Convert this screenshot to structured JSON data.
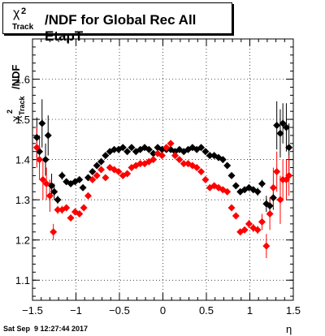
{
  "chart_data": {
    "type": "scatter",
    "title_symbol": "χ",
    "title_sup": "2",
    "title_sub": "Track",
    "title_rest": "/NDF for Global Rec All EtapT",
    "xlabel": "η",
    "ylabel_symbol": "χ",
    "ylabel_sup": "2",
    "ylabel_sub": "Track",
    "ylabel_rest": "/NDF",
    "xlim": [
      -1.5,
      1.5
    ],
    "ylim": [
      1.05,
      1.7
    ],
    "xticks": [
      -1.5,
      -1,
      -0.5,
      0,
      0.5,
      1,
      1.5
    ],
    "xtick_labels": [
      "−1.5",
      "−1",
      "−0.5",
      "0",
      "0.5",
      "1",
      "1.5"
    ],
    "yticks": [
      1.1,
      1.2,
      1.3,
      1.4,
      1.5,
      1.6
    ],
    "ytick_labels": [
      "1.1",
      "1.2",
      "1.3",
      "1.4",
      "1.5",
      "1.6"
    ],
    "grid": true,
    "series": [
      {
        "color": "#000000",
        "points": [
          [
            -1.45,
            1.455,
            0.05
          ],
          [
            -1.42,
            1.42,
            0.04
          ],
          [
            -1.39,
            1.49,
            0.06
          ],
          [
            -1.35,
            1.4,
            0.04
          ],
          [
            -1.32,
            1.46,
            0.05
          ],
          [
            -1.28,
            1.335,
            0.03
          ],
          [
            -1.25,
            1.32,
            0.02
          ],
          [
            -1.21,
            1.3,
            0.01
          ],
          [
            -1.16,
            1.36,
            0.01
          ],
          [
            -1.11,
            1.345,
            0.006
          ],
          [
            -1.06,
            1.34,
            0.005
          ],
          [
            -1.01,
            1.345,
            0.005
          ],
          [
            -0.96,
            1.35,
            0.005
          ],
          [
            -0.92,
            1.33,
            0.005
          ],
          [
            -0.86,
            1.355,
            0.005
          ],
          [
            -0.81,
            1.37,
            0.005
          ],
          [
            -0.76,
            1.385,
            0.005
          ],
          [
            -0.71,
            1.395,
            0.005
          ],
          [
            -0.66,
            1.41,
            0.005
          ],
          [
            -0.61,
            1.42,
            0.005
          ],
          [
            -0.56,
            1.425,
            0.005
          ],
          [
            -0.51,
            1.425,
            0.005
          ],
          [
            -0.46,
            1.43,
            0.005
          ],
          [
            -0.41,
            1.42,
            0.005
          ],
          [
            -0.36,
            1.43,
            0.005
          ],
          [
            -0.31,
            1.42,
            0.005
          ],
          [
            -0.26,
            1.425,
            0.005
          ],
          [
            -0.21,
            1.43,
            0.005
          ],
          [
            -0.16,
            1.425,
            0.005
          ],
          [
            -0.11,
            1.415,
            0.005
          ],
          [
            -0.06,
            1.43,
            0.005
          ],
          [
            -0.01,
            1.425,
            0.005
          ],
          [
            0.04,
            1.425,
            0.005
          ],
          [
            0.09,
            1.425,
            0.005
          ],
          [
            0.14,
            1.42,
            0.005
          ],
          [
            0.19,
            1.425,
            0.005
          ],
          [
            0.24,
            1.42,
            0.005
          ],
          [
            0.29,
            1.425,
            0.005
          ],
          [
            0.34,
            1.43,
            0.005
          ],
          [
            0.39,
            1.425,
            0.005
          ],
          [
            0.44,
            1.43,
            0.005
          ],
          [
            0.49,
            1.42,
            0.005
          ],
          [
            0.54,
            1.41,
            0.005
          ],
          [
            0.59,
            1.41,
            0.005
          ],
          [
            0.64,
            1.405,
            0.005
          ],
          [
            0.69,
            1.4,
            0.005
          ],
          [
            0.74,
            1.385,
            0.005
          ],
          [
            0.79,
            1.36,
            0.005
          ],
          [
            0.84,
            1.335,
            0.005
          ],
          [
            0.89,
            1.32,
            0.005
          ],
          [
            0.94,
            1.325,
            0.005
          ],
          [
            0.99,
            1.33,
            0.005
          ],
          [
            1.04,
            1.325,
            0.005
          ],
          [
            1.09,
            1.32,
            0.01
          ],
          [
            1.14,
            1.34,
            0.01
          ],
          [
            1.19,
            1.29,
            0.02
          ],
          [
            1.23,
            1.285,
            0.02
          ],
          [
            1.27,
            1.305,
            0.03
          ],
          [
            1.31,
            1.485,
            0.06
          ],
          [
            1.35,
            1.465,
            0.06
          ],
          [
            1.38,
            1.49,
            0.05
          ],
          [
            1.42,
            1.48,
            0.06
          ],
          [
            1.45,
            1.43,
            0.06
          ]
        ]
      },
      {
        "color": "#ff0000",
        "points": [
          [
            -1.45,
            1.43,
            0.05
          ],
          [
            -1.42,
            1.4,
            0.05
          ],
          [
            -1.38,
            1.35,
            0.05
          ],
          [
            -1.34,
            1.34,
            0.04
          ],
          [
            -1.3,
            1.31,
            0.04
          ],
          [
            -1.26,
            1.22,
            0.02
          ],
          [
            -1.21,
            1.275,
            0.01
          ],
          [
            -1.16,
            1.275,
            0.01
          ],
          [
            -1.11,
            1.28,
            0.008
          ],
          [
            -1.06,
            1.255,
            0.006
          ],
          [
            -1.01,
            1.27,
            0.006
          ],
          [
            -0.96,
            1.265,
            0.005
          ],
          [
            -0.91,
            1.28,
            0.005
          ],
          [
            -0.86,
            1.31,
            0.005
          ],
          [
            -0.81,
            1.35,
            0.005
          ],
          [
            -0.76,
            1.36,
            0.005
          ],
          [
            -0.71,
            1.375,
            0.005
          ],
          [
            -0.66,
            1.355,
            0.005
          ],
          [
            -0.61,
            1.38,
            0.005
          ],
          [
            -0.56,
            1.375,
            0.005
          ],
          [
            -0.51,
            1.37,
            0.005
          ],
          [
            -0.46,
            1.36,
            0.005
          ],
          [
            -0.41,
            1.365,
            0.005
          ],
          [
            -0.36,
            1.38,
            0.005
          ],
          [
            -0.31,
            1.385,
            0.005
          ],
          [
            -0.26,
            1.39,
            0.005
          ],
          [
            -0.21,
            1.39,
            0.005
          ],
          [
            -0.16,
            1.395,
            0.005
          ],
          [
            -0.11,
            1.4,
            0.005
          ],
          [
            -0.06,
            1.415,
            0.005
          ],
          [
            -0.01,
            1.41,
            0.005
          ],
          [
            0.04,
            1.43,
            0.005
          ],
          [
            0.09,
            1.44,
            0.005
          ],
          [
            0.14,
            1.41,
            0.005
          ],
          [
            0.19,
            1.4,
            0.005
          ],
          [
            0.24,
            1.39,
            0.005
          ],
          [
            0.29,
            1.39,
            0.005
          ],
          [
            0.34,
            1.385,
            0.005
          ],
          [
            0.39,
            1.38,
            0.005
          ],
          [
            0.44,
            1.37,
            0.005
          ],
          [
            0.49,
            1.35,
            0.005
          ],
          [
            0.54,
            1.33,
            0.005
          ],
          [
            0.59,
            1.335,
            0.005
          ],
          [
            0.64,
            1.33,
            0.005
          ],
          [
            0.69,
            1.325,
            0.005
          ],
          [
            0.74,
            1.32,
            0.005
          ],
          [
            0.79,
            1.28,
            0.005
          ],
          [
            0.84,
            1.26,
            0.006
          ],
          [
            0.89,
            1.22,
            0.006
          ],
          [
            0.94,
            1.225,
            0.008
          ],
          [
            0.99,
            1.24,
            0.01
          ],
          [
            1.04,
            1.23,
            0.01
          ],
          [
            1.09,
            1.225,
            0.01
          ],
          [
            1.14,
            1.245,
            0.02
          ],
          [
            1.19,
            1.185,
            0.03
          ],
          [
            1.23,
            1.265,
            0.04
          ],
          [
            1.27,
            1.33,
            0.05
          ],
          [
            1.31,
            1.37,
            0.05
          ],
          [
            1.35,
            1.3,
            0.06
          ],
          [
            1.38,
            1.35,
            0.05
          ],
          [
            1.42,
            1.35,
            0.05
          ],
          [
            1.45,
            1.36,
            0.05
          ]
        ]
      }
    ]
  },
  "timestamp": "Sat Sep  9 12:27:44 2017"
}
